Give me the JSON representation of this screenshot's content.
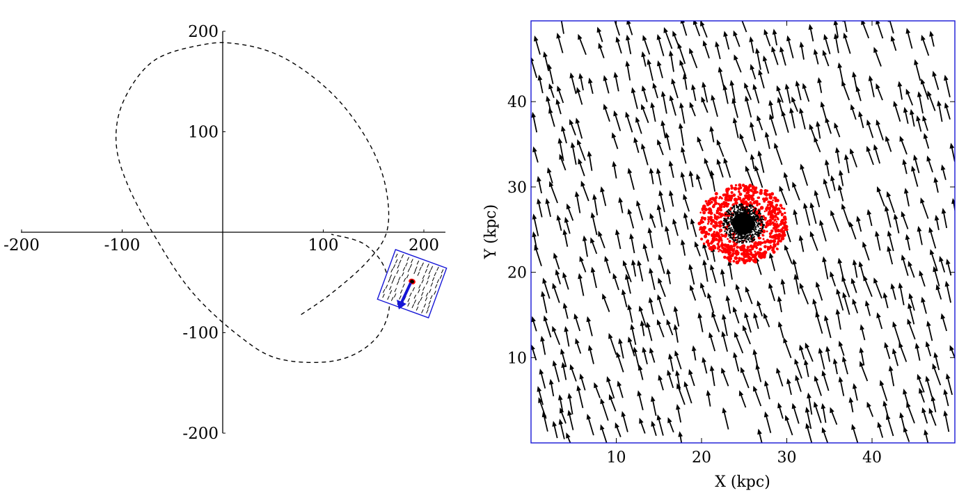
{
  "chart_data": [
    {
      "type": "line",
      "xlim": [
        -200,
        220
      ],
      "ylim": [
        -200,
        200
      ],
      "x_ticks": [
        "-200",
        "-100",
        "100",
        "200"
      ],
      "y_ticks": [
        "200",
        "100",
        "-100",
        "-200"
      ],
      "axes_through_origin": true,
      "series": [
        {
          "style": "dashed",
          "x": [
            78,
            108,
            143,
            163,
            163,
            150,
            124,
            93,
            56,
            18,
            -18,
            -68,
            -98,
            -106,
            -94,
            -64,
            -30,
            16,
            56,
            111,
            148,
            165,
            162,
            141,
            108
          ],
          "y": [
            -82,
            -61,
            -30,
            0,
            40,
            80,
            121,
            152,
            176,
            187,
            187,
            171,
            132,
            90,
            46,
            -10,
            -60,
            -103,
            -126,
            -128,
            -110,
            -79,
            -38,
            -12,
            -2
          ]
        }
      ],
      "inset": {
        "label": "zoom region (rotated)",
        "border_color": "#1515d6",
        "arrow_color": "#1515d6",
        "center": [
          190,
          -51
        ],
        "satellite_color": "#ff0000"
      }
    },
    {
      "type": "scatter",
      "xlabel": "X (kpc)",
      "ylabel": "Y (kpc)",
      "xlim": [
        0,
        50
      ],
      "ylim": [
        0,
        50
      ],
      "x_ticks": [
        "10",
        "20",
        "30",
        "40"
      ],
      "y_ticks": [
        "10",
        "20",
        "30",
        "40"
      ],
      "frame_color": "#1515d6",
      "quiver_color": "#000000",
      "satellite": {
        "center_kpc": [
          24.9,
          25.7
        ],
        "core_color": "#000000",
        "tidal_color": "#ff0000"
      }
    }
  ]
}
